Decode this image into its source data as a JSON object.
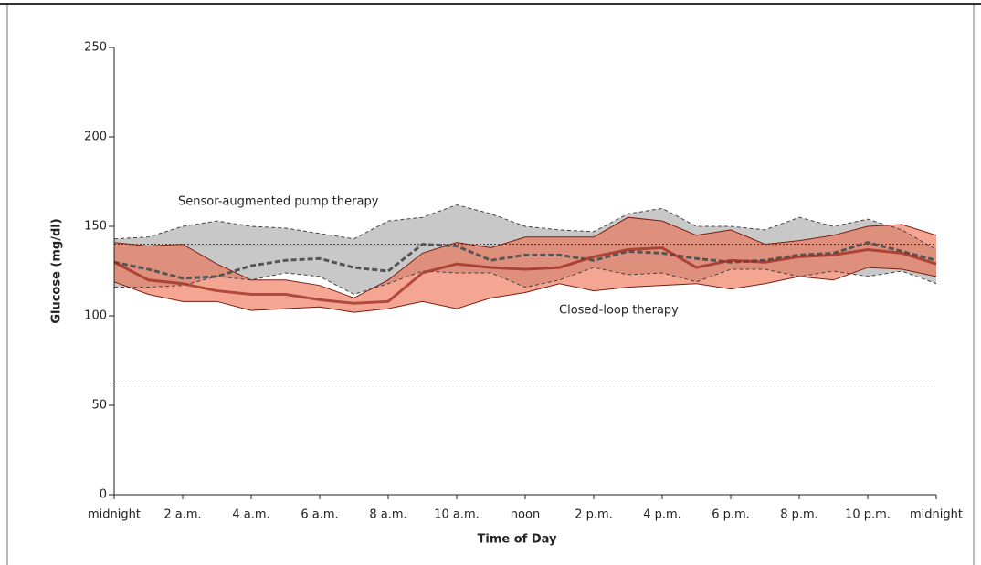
{
  "chart_data": {
    "type": "band-line",
    "x_label": "Time of Day",
    "y_label": "Glucose (mg/dl)",
    "x": [
      0,
      1,
      2,
      3,
      4,
      5,
      6,
      7,
      8,
      9,
      10,
      11,
      12,
      13,
      14,
      15,
      16,
      17,
      18,
      19,
      20,
      21,
      22,
      23,
      24
    ],
    "xlim": [
      0,
      24
    ],
    "ylim": [
      0,
      250
    ],
    "xticks": [
      {
        "value": 0,
        "label": "midnight"
      },
      {
        "value": 2,
        "label": "2 a.m."
      },
      {
        "value": 4,
        "label": "4 a.m."
      },
      {
        "value": 6,
        "label": "6 a.m."
      },
      {
        "value": 8,
        "label": "8 a.m."
      },
      {
        "value": 10,
        "label": "10 a.m."
      },
      {
        "value": 12,
        "label": "noon"
      },
      {
        "value": 14,
        "label": "2 p.m."
      },
      {
        "value": 16,
        "label": "4 p.m."
      },
      {
        "value": 18,
        "label": "6 p.m."
      },
      {
        "value": 20,
        "label": "8 p.m."
      },
      {
        "value": 22,
        "label": "10 p.m."
      },
      {
        "value": 24,
        "label": "midnight"
      }
    ],
    "yticks": [
      0,
      50,
      100,
      150,
      200,
      250
    ],
    "reference_lines": [
      63,
      140
    ],
    "series": [
      {
        "name": "Sensor-augmented pump therapy",
        "color": "#555555",
        "band_color": "#c8c8c8",
        "values": [
          130,
          126,
          121,
          122,
          128,
          131,
          132,
          127,
          125,
          140,
          139,
          131,
          134,
          134,
          131,
          136,
          135,
          132,
          130,
          131,
          134,
          135,
          141,
          136,
          131
        ],
        "upper": [
          143,
          144,
          150,
          153,
          150,
          149,
          146,
          143,
          153,
          155,
          162,
          157,
          150,
          148,
          147,
          157,
          160,
          150,
          150,
          148,
          155,
          150,
          154,
          148,
          137
        ],
        "lower": [
          116,
          116,
          117,
          122,
          120,
          124,
          122,
          112,
          118,
          125,
          124,
          124,
          116,
          120,
          127,
          123,
          124,
          119,
          126,
          126,
          122,
          125,
          122,
          125,
          118
        ]
      },
      {
        "name": "Closed-loop therapy",
        "color": "#9b2b1f",
        "band_color": "#ee6a4a",
        "values": [
          130,
          120,
          118,
          114,
          112,
          112,
          109,
          107,
          108,
          124,
          129,
          127,
          126,
          127,
          133,
          137,
          138,
          127,
          131,
          130,
          133,
          134,
          137,
          135,
          129
        ],
        "upper": [
          141,
          139,
          140,
          129,
          120,
          120,
          117,
          110,
          120,
          135,
          141,
          138,
          144,
          144,
          144,
          155,
          153,
          145,
          148,
          140,
          142,
          145,
          150,
          151,
          145
        ],
        "lower": [
          119,
          112,
          108,
          108,
          103,
          104,
          105,
          102,
          104,
          108,
          104,
          110,
          113,
          118,
          114,
          116,
          117,
          118,
          115,
          118,
          122,
          120,
          127,
          126,
          122
        ]
      }
    ]
  }
}
